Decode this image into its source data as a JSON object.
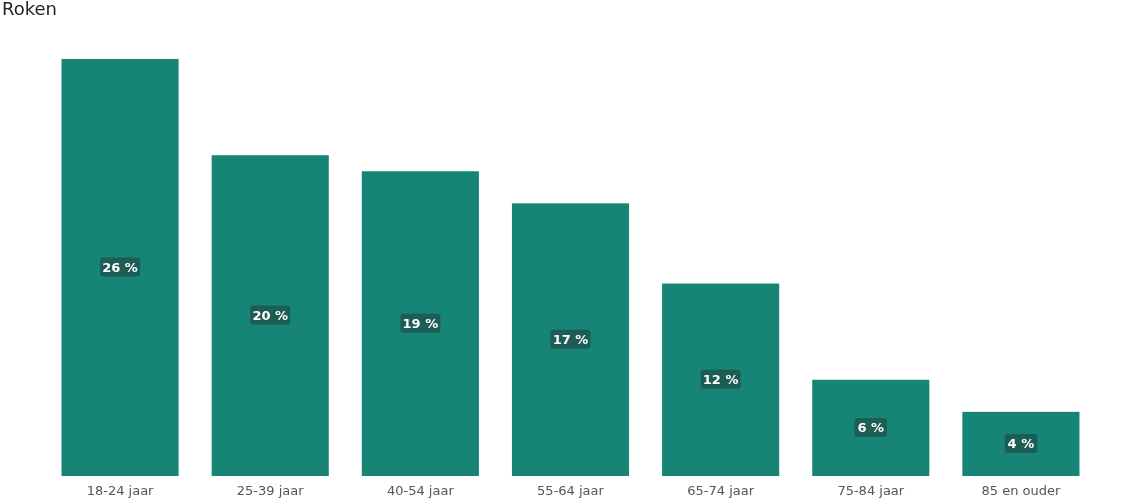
{
  "chart_data": {
    "type": "bar",
    "title": "Roken",
    "categories": [
      "18-24 jaar",
      "25-39 jaar",
      "40-54 jaar",
      "55-64 jaar",
      "65-74 jaar",
      "75-84 jaar",
      "85 en ouder"
    ],
    "values": [
      26,
      20,
      19,
      17,
      12,
      6,
      4
    ],
    "value_labels": [
      "26 %",
      "20 %",
      "19 %",
      "17 %",
      "12 %",
      "6 %",
      "4 %"
    ],
    "color": "#168575"
  }
}
